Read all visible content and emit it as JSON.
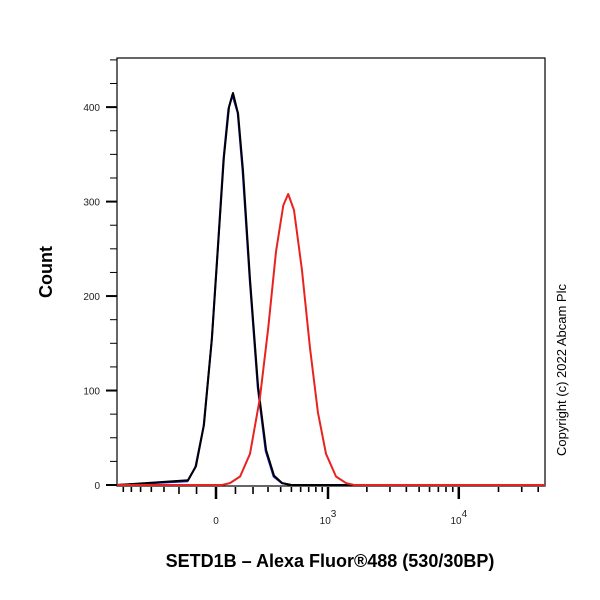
{
  "chart_data": {
    "type": "line",
    "title": "",
    "xlabel": "SETD1B – Alexa Fluor®488 (530/30BP)",
    "ylabel": "Count",
    "x_scale": "biexponential",
    "xlim": [
      -786,
      45000
    ],
    "ylim": [
      0,
      452
    ],
    "grid": false,
    "legend": "none",
    "x_ticks": [
      {
        "value": 0,
        "base": "0",
        "exp": ""
      },
      {
        "value": 1000,
        "base": "10",
        "exp": "3"
      },
      {
        "value": 10000,
        "base": "10",
        "exp": "4"
      }
    ],
    "y_ticks": [
      {
        "value": 0,
        "label": "0"
      },
      {
        "value": 100,
        "label": "100"
      },
      {
        "value": 200,
        "label": "200"
      },
      {
        "value": 300,
        "label": "300"
      },
      {
        "value": 400,
        "label": "400"
      }
    ],
    "series": [
      {
        "color": "#1a1ad0",
        "points": [
          [
            -786,
            0
          ],
          [
            -150,
            4
          ],
          [
            -106,
            19
          ],
          [
            -63,
            62
          ],
          [
            -22,
            152
          ],
          [
            8,
            248
          ],
          [
            38,
            345
          ],
          [
            63,
            398
          ],
          [
            84,
            413
          ],
          [
            112,
            394
          ],
          [
            139,
            333
          ],
          [
            180,
            218
          ],
          [
            230,
            103
          ],
          [
            283,
            36
          ],
          [
            342,
            9
          ],
          [
            410,
            2
          ],
          [
            500,
            0
          ],
          [
            45000,
            0
          ]
        ]
      },
      {
        "color": "#000000",
        "points": [
          [
            -786,
            0
          ],
          [
            -147,
            5
          ],
          [
            -103,
            20
          ],
          [
            -61,
            64
          ],
          [
            -20,
            156
          ],
          [
            10,
            252
          ],
          [
            40,
            347
          ],
          [
            66,
            400
          ],
          [
            87,
            415
          ],
          [
            114,
            393
          ],
          [
            141,
            333
          ],
          [
            182,
            218
          ],
          [
            232,
            104
          ],
          [
            286,
            37
          ],
          [
            345,
            10
          ],
          [
            413,
            2
          ],
          [
            500,
            0
          ],
          [
            45000,
            0
          ]
        ]
      },
      {
        "color": "#e8231f",
        "points": [
          [
            -786,
            0
          ],
          [
            30,
            0
          ],
          [
            71,
            2
          ],
          [
            125,
            9
          ],
          [
            182,
            33
          ],
          [
            244,
            92
          ],
          [
            301,
            166
          ],
          [
            361,
            247
          ],
          [
            423,
            296
          ],
          [
            468,
            308
          ],
          [
            527,
            291
          ],
          [
            615,
            228
          ],
          [
            716,
            146
          ],
          [
            831,
            77
          ],
          [
            965,
            33
          ],
          [
            1156,
            9
          ],
          [
            1382,
            2
          ],
          [
            1600,
            0
          ],
          [
            45000,
            0
          ]
        ]
      }
    ]
  },
  "copyright": "Copyright (c) 2022 Abcam Plc"
}
